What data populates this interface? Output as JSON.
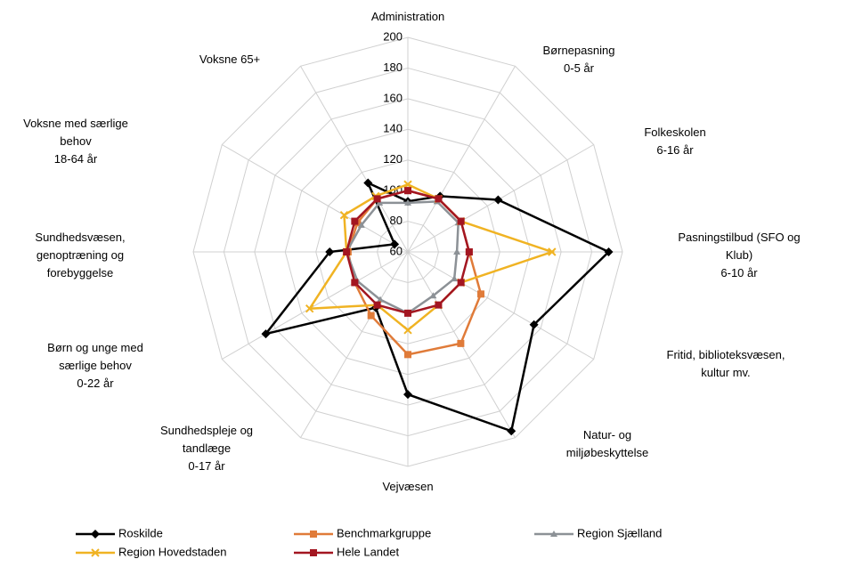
{
  "chart_data": {
    "type": "radar",
    "categories": [
      "Administration",
      "Børnepasning\n0-5 år",
      "Folkeskolen\n6-16 år",
      "Pasningstilbud (SFO og\nKlub)\n6-10 år",
      "Fritid, biblioteksvæsen,\nkultur mv.",
      "Natur- og\nmiljøbeskyttelse",
      "Vejvæsen",
      "Sundhedspleje og\ntandlæge\n0-17 år",
      "Børn og unge med\nsærlige behov\n0-22 år",
      "Sundhedsvæsen,\ngenoptræning og\nforebyggelse",
      "Voksne med særlige\nbehov\n18-64 år",
      "Voksne 65+"
    ],
    "ylim": [
      60,
      200
    ],
    "yticks": [
      60,
      80,
      100,
      120,
      140,
      160,
      180,
      200
    ],
    "grid": true,
    "legend": "bottom",
    "series": [
      {
        "name": "Roskilde",
        "color": "#000000",
        "marker": "diamond",
        "values": [
          93,
          102,
          128,
          191,
          155,
          195,
          153,
          102,
          167,
          111,
          70,
          112
        ]
      },
      {
        "name": "Benchmarkgruppe",
        "color": "#e07b39",
        "marker": "square",
        "values": [
          100,
          100,
          100,
          100,
          115,
          129,
          127,
          108,
          100,
          99,
          98,
          100
        ]
      },
      {
        "name": "Region Sjælland",
        "color": "#8c9196",
        "marker": "triangle",
        "values": [
          92,
          98,
          98,
          92,
          95,
          93,
          100,
          96,
          98,
          100,
          95,
          97
        ]
      },
      {
        "name": "Region Hovedstaden",
        "color": "#f0b323",
        "marker": "x",
        "values": [
          104,
          100,
          100,
          154,
          100,
          100,
          111,
          100,
          134,
          100,
          108,
          102
        ]
      },
      {
        "name": "Hele Landet",
        "color": "#a31621",
        "marker": "square",
        "values": [
          100,
          100,
          100,
          100,
          100,
          100,
          100,
          100,
          100,
          100,
          100,
          100
        ]
      }
    ]
  }
}
